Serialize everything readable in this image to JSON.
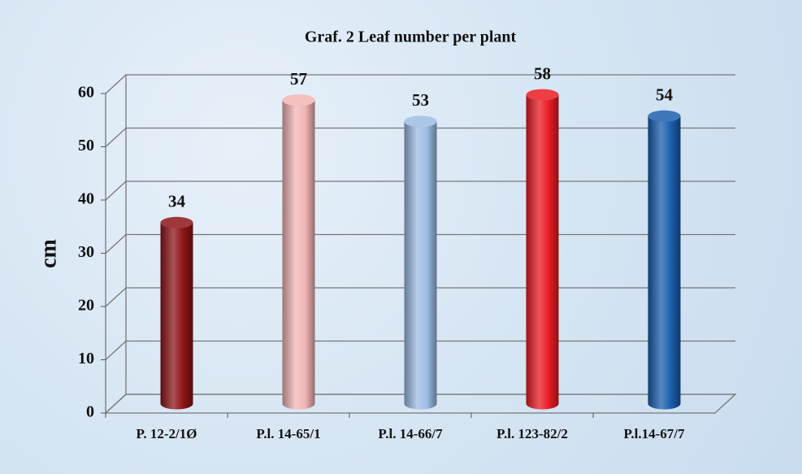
{
  "chart_data": {
    "type": "bar",
    "title": "Graf. 2 Leaf number per plant",
    "y_label": "cm",
    "categories": [
      "P. 12-2/1Ø",
      "P.l. 14-65/1",
      "P.l. 14-66/7",
      "P.l. 123-82/2",
      "P.l.14-67/7"
    ],
    "values": [
      34,
      57,
      53,
      58,
      54
    ],
    "colors": [
      "#8e1518",
      "#f2b5b5",
      "#9dbce4",
      "#ea1c24",
      "#1c5fae"
    ],
    "ylim": [
      0,
      60
    ],
    "yticks": [
      0,
      10,
      20,
      30,
      40,
      50,
      60
    ],
    "grid": true
  }
}
